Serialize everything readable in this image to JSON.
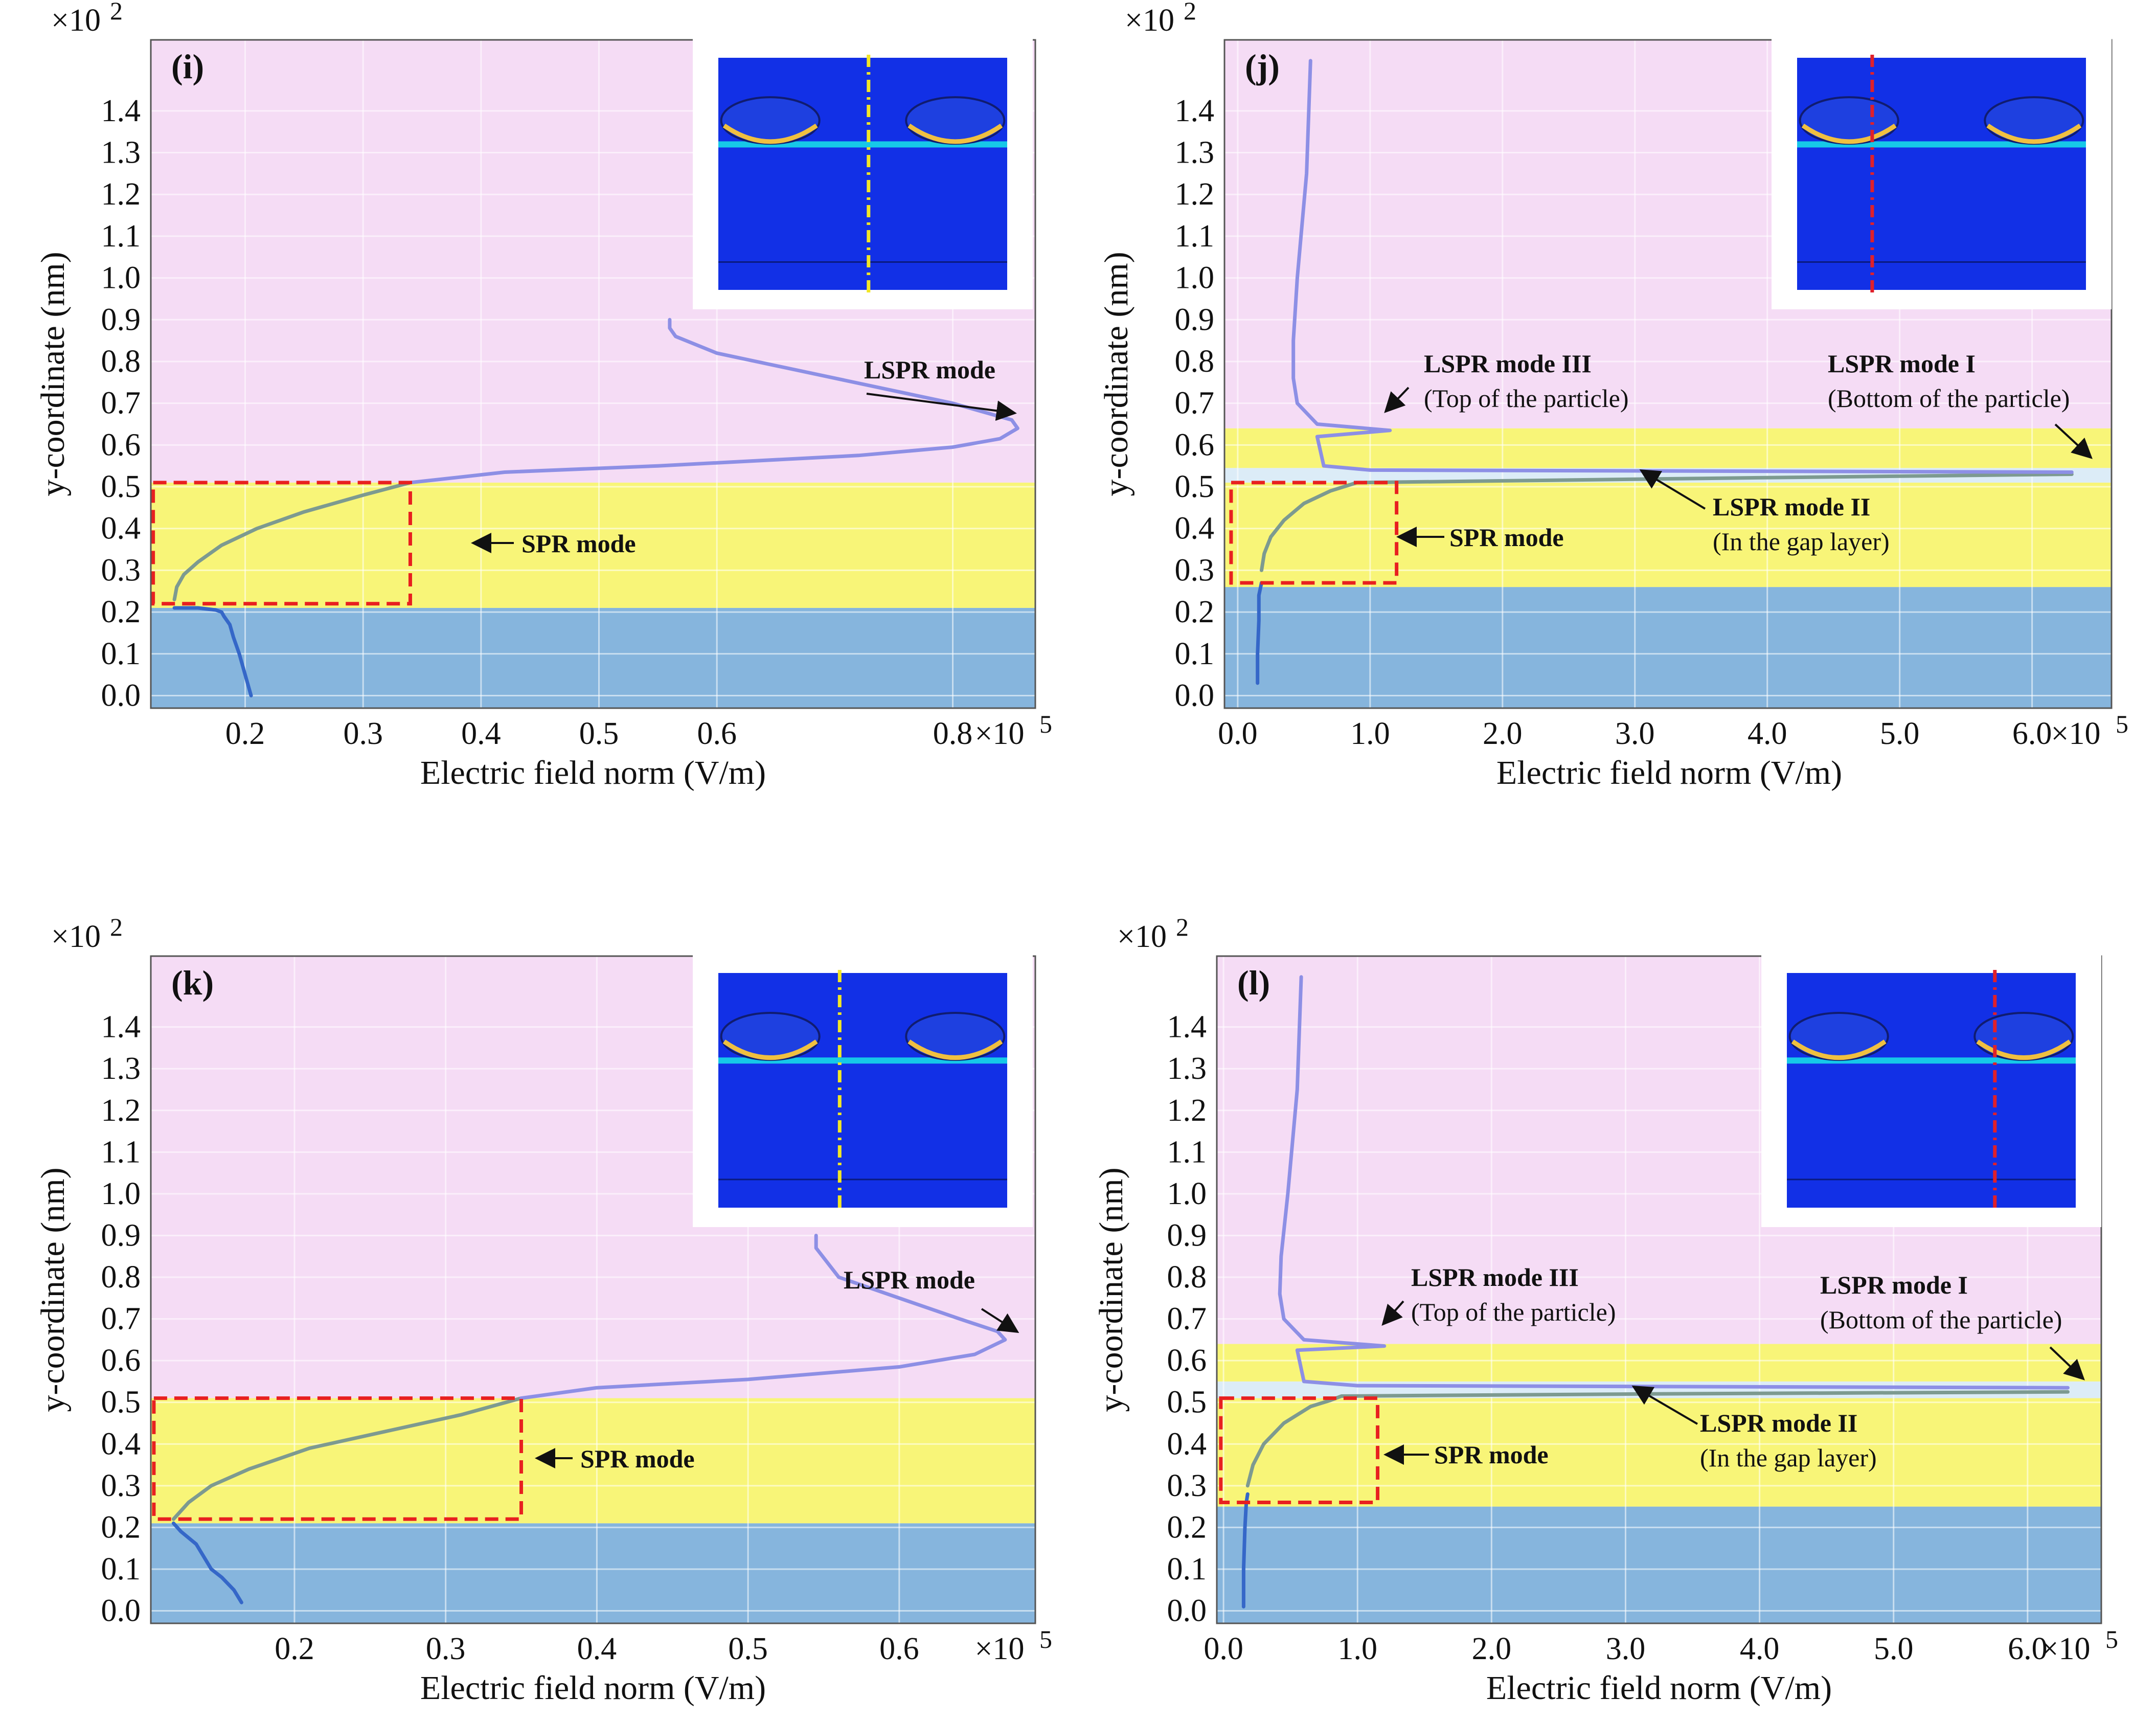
{
  "figure": {
    "title": ""
  },
  "colors": {
    "air": "#f5dcf5",
    "gold": "#f8f578",
    "substrate": "#86b5dd",
    "gap": "#dcecf7",
    "curve_upper": "#8d8fe5",
    "curve_mid": "#7d9a90",
    "curve_low": "#3567c8",
    "spr_box": "#e82020",
    "dash_yellow": "#f2e624",
    "dash_red": "#e0202a"
  },
  "chart_data": [
    {
      "panel_label": "(i)",
      "type": "line",
      "xlabel": "Electric field norm (V/m)",
      "ylabel": "y-coordinate (nm)",
      "x_multiplier": "×10",
      "x_multiplier_exp": "5",
      "y_multiplier": "×10",
      "y_multiplier_exp": "2",
      "xlim": [
        0.12,
        0.87
      ],
      "ylim": [
        -0.03,
        1.57
      ],
      "xticks": [
        0.2,
        0.3,
        0.4,
        0.5,
        0.6,
        0.8
      ],
      "xtick_labels": [
        "0.2",
        "0.3",
        "0.4",
        "0.5",
        "0.6",
        "0.8"
      ],
      "yticks": [
        0.0,
        0.1,
        0.2,
        0.3,
        0.4,
        0.5,
        0.6,
        0.7,
        0.8,
        0.9,
        1.0,
        1.1,
        1.2,
        1.3,
        1.4
      ],
      "ytick_labels": [
        "0.0",
        "0.1",
        "0.2",
        "0.3",
        "0.4",
        "0.5",
        "0.6",
        "0.7",
        "0.8",
        "0.9",
        "1.0",
        "1.1",
        "1.2",
        "1.3",
        "1.4"
      ],
      "regions": [
        {
          "name": "substrate",
          "y0": -0.03,
          "y1": 0.21
        },
        {
          "name": "gold",
          "y0": 0.21,
          "y1": 0.51
        },
        {
          "name": "air",
          "y0": 0.51,
          "y1": 1.57
        }
      ],
      "series": [
        {
          "name": "substrate",
          "x": [
            0.205,
            0.2,
            0.195,
            0.19,
            0.187,
            0.182,
            0.18,
            0.175,
            0.16,
            0.14
          ],
          "y": [
            0.0,
            0.05,
            0.1,
            0.14,
            0.17,
            0.19,
            0.2,
            0.205,
            0.21,
            0.21
          ]
        },
        {
          "name": "gold",
          "x": [
            0.14,
            0.142,
            0.148,
            0.16,
            0.18,
            0.21,
            0.25,
            0.3,
            0.34
          ],
          "y": [
            0.23,
            0.26,
            0.29,
            0.32,
            0.36,
            0.4,
            0.44,
            0.48,
            0.51
          ]
        },
        {
          "name": "air",
          "x": [
            0.34,
            0.42,
            0.55,
            0.72,
            0.8,
            0.84,
            0.855,
            0.85,
            0.8,
            0.7,
            0.6,
            0.565,
            0.56,
            0.56
          ],
          "y": [
            0.51,
            0.535,
            0.55,
            0.575,
            0.595,
            0.615,
            0.64,
            0.66,
            0.7,
            0.76,
            0.82,
            0.86,
            0.88,
            0.9
          ]
        }
      ],
      "spr_box": {
        "x0": 0.122,
        "x1": 0.34,
        "y0": 0.22,
        "y1": 0.51
      },
      "annotations": [
        {
          "text": "LSPR mode",
          "sub": ""
        },
        {
          "text": "SPR mode",
          "sub": ""
        }
      ],
      "inset": {
        "line": "yellow",
        "line_pos": 0.52
      }
    },
    {
      "panel_label": "(j)",
      "type": "line",
      "xlabel": "Electric field norm (V/m)",
      "ylabel": "y-coordinate (nm)",
      "x_multiplier": "×10",
      "x_multiplier_exp": "5",
      "y_multiplier": "×10",
      "y_multiplier_exp": "2",
      "xlim": [
        -0.1,
        6.6
      ],
      "ylim": [
        -0.03,
        1.57
      ],
      "xticks": [
        0.0,
        1.0,
        2.0,
        3.0,
        4.0,
        5.0,
        6.0
      ],
      "xtick_labels": [
        "0.0",
        "1.0",
        "2.0",
        "3.0",
        "4.0",
        "5.0",
        "6.0"
      ],
      "yticks": [
        0.0,
        0.1,
        0.2,
        0.3,
        0.4,
        0.5,
        0.6,
        0.7,
        0.8,
        0.9,
        1.0,
        1.1,
        1.2,
        1.3,
        1.4
      ],
      "ytick_labels": [
        "0.0",
        "0.1",
        "0.2",
        "0.3",
        "0.4",
        "0.5",
        "0.6",
        "0.7",
        "0.8",
        "0.9",
        "1.0",
        "1.1",
        "1.2",
        "1.3",
        "1.4"
      ],
      "regions": [
        {
          "name": "substrate",
          "y0": -0.03,
          "y1": 0.26
        },
        {
          "name": "gold",
          "y0": 0.26,
          "y1": 0.51
        },
        {
          "name": "gap",
          "y0": 0.51,
          "y1": 0.545
        },
        {
          "name": "gold",
          "y0": 0.545,
          "y1": 0.64
        },
        {
          "name": "air",
          "y0": 0.64,
          "y1": 1.57
        }
      ],
      "series": [
        {
          "name": "substrate",
          "x": [
            0.15,
            0.15,
            0.16,
            0.16,
            0.18
          ],
          "y": [
            0.03,
            0.1,
            0.18,
            0.24,
            0.27
          ]
        },
        {
          "name": "gold",
          "x": [
            0.18,
            0.2,
            0.25,
            0.35,
            0.5,
            0.7,
            0.85,
            0.9,
            3.5,
            6.3
          ],
          "y": [
            0.3,
            0.34,
            0.38,
            0.42,
            0.46,
            0.49,
            0.505,
            0.51,
            0.52,
            0.53
          ]
        },
        {
          "name": "air",
          "x": [
            6.3,
            1.0,
            0.65,
            0.6,
            1.15,
            0.6,
            0.45,
            0.42,
            0.42,
            0.45,
            0.52,
            0.55
          ],
          "y": [
            0.535,
            0.54,
            0.55,
            0.62,
            0.635,
            0.65,
            0.7,
            0.76,
            0.85,
            1.0,
            1.25,
            1.52
          ]
        }
      ],
      "spr_box": {
        "x0": -0.05,
        "x1": 1.2,
        "y0": 0.27,
        "y1": 0.51
      },
      "annotations": [
        {
          "text": "LSPR mode III",
          "sub": "(Top of the particle)"
        },
        {
          "text": "LSPR mode I",
          "sub": "(Bottom of the particle)"
        },
        {
          "text": "LSPR mode II",
          "sub": "(In the gap layer)"
        },
        {
          "text": "SPR mode",
          "sub": ""
        }
      ],
      "inset": {
        "line": "red",
        "line_pos": 0.26
      }
    },
    {
      "panel_label": "(k)",
      "type": "line",
      "xlabel": "Electric field norm (V/m)",
      "ylabel": "y-coordinate (nm)",
      "x_multiplier": "×10",
      "x_multiplier_exp": "5",
      "y_multiplier": "×10",
      "y_multiplier_exp": "2",
      "xlim": [
        0.105,
        0.69
      ],
      "ylim": [
        -0.03,
        1.57
      ],
      "xticks": [
        0.2,
        0.3,
        0.4,
        0.5,
        0.6
      ],
      "xtick_labels": [
        "0.2",
        "0.3",
        "0.4",
        "0.5",
        "0.6"
      ],
      "yticks": [
        0.0,
        0.1,
        0.2,
        0.3,
        0.4,
        0.5,
        0.6,
        0.7,
        0.8,
        0.9,
        1.0,
        1.1,
        1.2,
        1.3,
        1.4
      ],
      "ytick_labels": [
        "0.0",
        "0.1",
        "0.2",
        "0.3",
        "0.4",
        "0.5",
        "0.6",
        "0.7",
        "0.8",
        "0.9",
        "1.0",
        "1.1",
        "1.2",
        "1.3",
        "1.4"
      ],
      "regions": [
        {
          "name": "substrate",
          "y0": -0.03,
          "y1": 0.21
        },
        {
          "name": "gold",
          "y0": 0.21,
          "y1": 0.51
        },
        {
          "name": "air",
          "y0": 0.51,
          "y1": 1.57
        }
      ],
      "series": [
        {
          "name": "substrate",
          "x": [
            0.165,
            0.16,
            0.152,
            0.145,
            0.14,
            0.135,
            0.125,
            0.12
          ],
          "y": [
            0.02,
            0.05,
            0.08,
            0.1,
            0.13,
            0.16,
            0.19,
            0.21
          ]
        },
        {
          "name": "gold",
          "x": [
            0.12,
            0.13,
            0.145,
            0.17,
            0.21,
            0.26,
            0.31,
            0.35
          ],
          "y": [
            0.22,
            0.26,
            0.3,
            0.34,
            0.39,
            0.43,
            0.47,
            0.51
          ]
        },
        {
          "name": "air",
          "x": [
            0.35,
            0.4,
            0.5,
            0.6,
            0.65,
            0.67,
            0.665,
            0.64,
            0.6,
            0.56,
            0.545,
            0.545
          ],
          "y": [
            0.51,
            0.535,
            0.555,
            0.585,
            0.615,
            0.65,
            0.67,
            0.7,
            0.75,
            0.8,
            0.87,
            0.9
          ]
        }
      ],
      "spr_box": {
        "x0": 0.107,
        "x1": 0.35,
        "y0": 0.22,
        "y1": 0.51
      },
      "annotations": [
        {
          "text": "LSPR mode",
          "sub": ""
        },
        {
          "text": "SPR mode",
          "sub": ""
        }
      ],
      "inset": {
        "line": "yellow",
        "line_pos": 0.42
      }
    },
    {
      "panel_label": "(l)",
      "type": "line",
      "xlabel": "Electric field norm (V/m)",
      "ylabel": "y-coordinate (nm)",
      "x_multiplier": "×10",
      "x_multiplier_exp": "5",
      "y_multiplier": "×10",
      "y_multiplier_exp": "2",
      "xlim": [
        -0.05,
        6.55
      ],
      "ylim": [
        -0.03,
        1.57
      ],
      "xticks": [
        0.0,
        1.0,
        2.0,
        3.0,
        4.0,
        5.0,
        6.0
      ],
      "xtick_labels": [
        "0.0",
        "1.0",
        "2.0",
        "3.0",
        "4.0",
        "5.0",
        "6.0"
      ],
      "yticks": [
        0.0,
        0.1,
        0.2,
        0.3,
        0.4,
        0.5,
        0.6,
        0.7,
        0.8,
        0.9,
        1.0,
        1.1,
        1.2,
        1.3,
        1.4
      ],
      "ytick_labels": [
        "0.0",
        "0.1",
        "0.2",
        "0.3",
        "0.4",
        "0.5",
        "0.6",
        "0.7",
        "0.8",
        "0.9",
        "1.0",
        "1.1",
        "1.2",
        "1.3",
        "1.4"
      ],
      "regions": [
        {
          "name": "substrate",
          "y0": -0.03,
          "y1": 0.25
        },
        {
          "name": "gold",
          "y0": 0.25,
          "y1": 0.51
        },
        {
          "name": "gap",
          "y0": 0.51,
          "y1": 0.55
        },
        {
          "name": "gold",
          "y0": 0.55,
          "y1": 0.64
        },
        {
          "name": "air",
          "y0": 0.64,
          "y1": 1.57
        }
      ],
      "series": [
        {
          "name": "substrate",
          "x": [
            0.15,
            0.15,
            0.16,
            0.17,
            0.18
          ],
          "y": [
            0.01,
            0.1,
            0.2,
            0.26,
            0.28
          ]
        },
        {
          "name": "gold",
          "x": [
            0.18,
            0.22,
            0.3,
            0.45,
            0.65,
            0.8,
            0.88,
            3.1,
            6.3
          ],
          "y": [
            0.3,
            0.35,
            0.4,
            0.45,
            0.49,
            0.505,
            0.515,
            0.52,
            0.525
          ]
        },
        {
          "name": "air",
          "x": [
            6.3,
            1.0,
            0.6,
            0.55,
            1.2,
            0.6,
            0.45,
            0.42,
            0.43,
            0.48,
            0.55,
            0.58
          ],
          "y": [
            0.535,
            0.54,
            0.55,
            0.625,
            0.635,
            0.65,
            0.7,
            0.76,
            0.85,
            1.0,
            1.25,
            1.52
          ]
        }
      ],
      "spr_box": {
        "x0": -0.02,
        "x1": 1.15,
        "y0": 0.26,
        "y1": 0.51
      },
      "annotations": [
        {
          "text": "LSPR mode III",
          "sub": "(Top of the particle)"
        },
        {
          "text": "LSPR mode I",
          "sub": "(Bottom of the particle)"
        },
        {
          "text": "LSPR mode II",
          "sub": "(In the gap layer)"
        },
        {
          "text": "SPR mode",
          "sub": ""
        }
      ],
      "inset": {
        "line": "red",
        "line_pos": 0.72
      }
    }
  ]
}
